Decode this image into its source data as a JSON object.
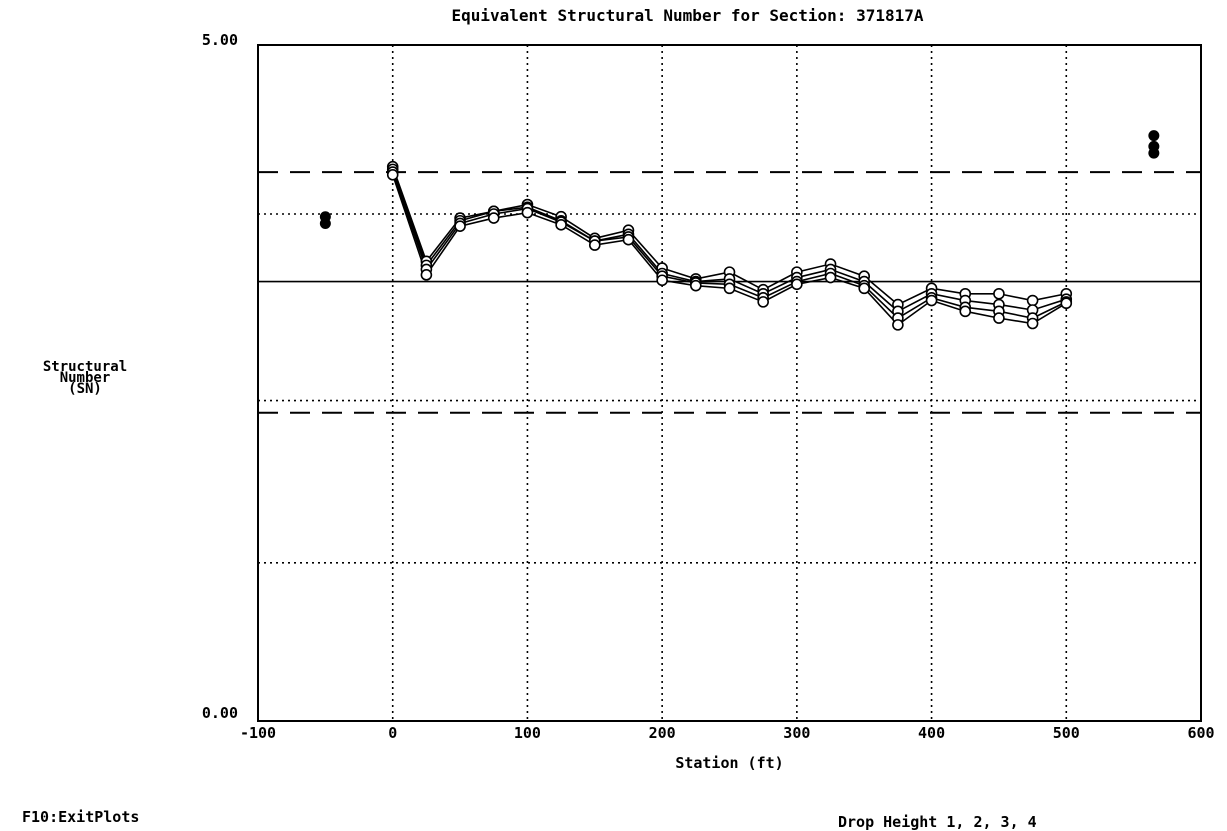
{
  "chart_data": {
    "type": "line",
    "title": "Equivalent Structural Number for Section: 371817A",
    "xlabel": "Station (ft)",
    "ylabel_lines": [
      "Structural",
      "Number",
      "(SN)"
    ],
    "xlim": [
      -100,
      600
    ],
    "ylim": [
      0,
      5
    ],
    "x_ticks": [
      "-100",
      "0",
      "100",
      "200",
      "300",
      "400",
      "500",
      "600"
    ],
    "y_ticks": [
      "0.00",
      "5.00"
    ],
    "grid": true,
    "reference_lines": {
      "mean": 3.25,
      "std_dev_dotted": [
        3.75,
        2.37
      ],
      "confidence_dashed": [
        4.06,
        2.28
      ],
      "other_dotted": [
        1.17
      ]
    },
    "x": [
      0,
      25,
      50,
      75,
      100,
      125,
      150,
      175,
      200,
      225,
      250,
      275,
      300,
      325,
      350,
      375,
      400,
      425,
      450,
      475,
      500
    ],
    "series": [
      {
        "values": [
          4.1,
          3.4,
          3.72,
          3.77,
          3.82,
          3.73,
          3.57,
          3.63,
          3.35,
          3.27,
          3.32,
          3.19,
          3.32,
          3.38,
          3.29,
          3.08,
          3.2,
          3.16,
          3.16,
          3.11,
          3.16
        ]
      },
      {
        "values": [
          4.08,
          3.37,
          3.7,
          3.77,
          3.8,
          3.7,
          3.55,
          3.6,
          3.31,
          3.25,
          3.27,
          3.16,
          3.28,
          3.34,
          3.25,
          3.03,
          3.16,
          3.11,
          3.08,
          3.04,
          3.12
        ]
      },
      {
        "values": [
          4.06,
          3.34,
          3.68,
          3.75,
          3.79,
          3.69,
          3.55,
          3.58,
          3.29,
          3.24,
          3.23,
          3.13,
          3.25,
          3.31,
          3.22,
          2.98,
          3.13,
          3.06,
          3.03,
          2.98,
          3.1
        ]
      },
      {
        "values": [
          4.04,
          3.3,
          3.66,
          3.72,
          3.76,
          3.67,
          3.52,
          3.56,
          3.26,
          3.22,
          3.2,
          3.1,
          3.23,
          3.28,
          3.2,
          2.93,
          3.11,
          3.03,
          2.98,
          2.94,
          3.09
        ]
      }
    ],
    "outliers_left": {
      "x": -50,
      "values": [
        3.73,
        3.68
      ]
    },
    "outliers_right": {
      "x": 565,
      "values": [
        4.33,
        4.25,
        4.2
      ]
    },
    "legend_text": "Drop Height 1, 2, 3, 4"
  },
  "footer": {
    "hint": "F10:ExitPlots"
  }
}
